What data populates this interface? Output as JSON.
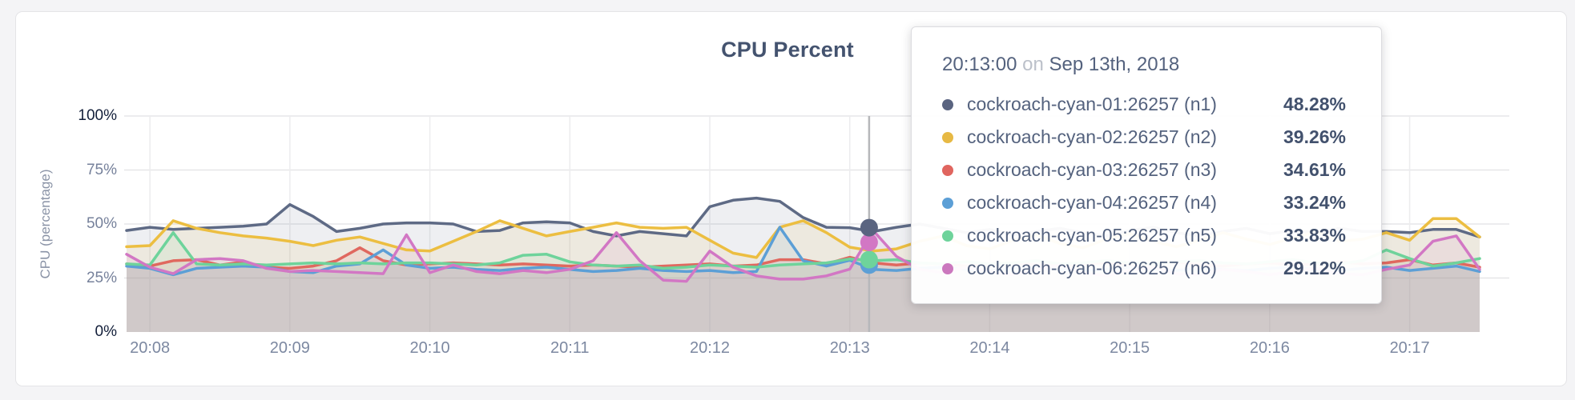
{
  "card": {
    "background": "#ffffff"
  },
  "chart_data": {
    "type": "line",
    "title": "CPU Percent",
    "ylabel": "CPU (percentage)",
    "ylim": [
      0,
      100
    ],
    "grid": true,
    "ytick_values": [
      0,
      25,
      50,
      75,
      100
    ],
    "ytick_labels": [
      "0%",
      "25%",
      "50%",
      "75%",
      "100%"
    ],
    "xtick_labels": [
      "20:08",
      "20:09",
      "20:10",
      "20:11",
      "20:12",
      "20:13",
      "20:14",
      "20:15",
      "20:16",
      "20:17"
    ],
    "x_start_time": "20:07:50",
    "x_interval_seconds": 10,
    "date": "Sep 13th, 2018",
    "series": [
      {
        "name": "cockroach-cyan-01:26257 (n1)",
        "color": "#5e6a85",
        "values": [
          47,
          48.5,
          47.5,
          48,
          48.5,
          49,
          50,
          59,
          53.5,
          46.5,
          48,
          50,
          50.5,
          50.5,
          50,
          46.5,
          47,
          50.5,
          51,
          50.5,
          46.5,
          44.5,
          46.5,
          45.5,
          44.5,
          58,
          61,
          62,
          60.5,
          53,
          48.5,
          48.28,
          46.5,
          48.5,
          50,
          48,
          46,
          47.5,
          45,
          46.5,
          48,
          46,
          44.5,
          47,
          48.5,
          46,
          44.5,
          46.5,
          48,
          45.5,
          47,
          46,
          48,
          46.5,
          46.5,
          46,
          47.5,
          47.5,
          44
        ]
      },
      {
        "name": "cockroach-cyan-02:26257 (n2)",
        "color": "#ecbe41",
        "values": [
          39.5,
          40,
          51.5,
          48,
          46,
          44.5,
          43.5,
          42,
          40,
          42.5,
          44,
          41,
          38,
          37.5,
          42,
          46.5,
          51.5,
          48,
          44.5,
          46.5,
          48.5,
          50.5,
          48.5,
          48,
          48.5,
          42.5,
          36.5,
          34.5,
          48.5,
          51.5,
          46,
          39.26,
          37.5,
          38.5,
          42,
          44.5,
          40,
          38.5,
          42.5,
          45,
          41,
          39,
          43,
          45.5,
          42,
          39.5,
          42.5,
          46,
          43,
          40.5,
          43.5,
          46.5,
          42,
          43,
          46,
          42.5,
          52.5,
          52.5,
          44
        ]
      },
      {
        "name": "cockroach-cyan-03:26257 (n3)",
        "color": "#e0685f",
        "values": [
          31.5,
          30.5,
          33,
          33.5,
          31,
          32.5,
          30,
          29.5,
          30.5,
          33,
          39,
          33,
          31,
          31.5,
          32,
          31.5,
          31,
          31.5,
          31,
          30.5,
          31,
          30.5,
          30,
          30.5,
          31,
          31.5,
          30.5,
          31,
          33.5,
          33.5,
          31.5,
          34.61,
          32,
          31,
          32,
          31.5,
          30.5,
          31.5,
          32,
          31,
          30.5,
          31.5,
          32,
          31,
          31.5,
          32.5,
          31,
          30.5,
          31.5,
          32,
          31,
          31.5,
          32.5,
          31.5,
          32,
          33.5,
          31,
          32,
          30
        ]
      },
      {
        "name": "cockroach-cyan-04:26257 (n4)",
        "color": "#5c9fd6",
        "values": [
          30.5,
          29.5,
          26.5,
          29.5,
          30,
          30.5,
          30,
          28,
          27.5,
          30.5,
          31.5,
          38,
          31,
          29.5,
          30,
          29,
          28.5,
          29.5,
          30,
          29,
          28,
          28.5,
          29.5,
          28.5,
          28,
          28.5,
          27.5,
          28,
          48.5,
          33,
          30.5,
          33.24,
          29,
          28.5,
          29.5,
          30,
          29,
          28.5,
          29.5,
          30,
          29,
          28.5,
          29,
          30,
          29,
          28.5,
          29.5,
          29,
          28.5,
          29.5,
          30,
          29,
          28.5,
          29.5,
          30,
          28.5,
          29.5,
          30.5,
          28
        ]
      },
      {
        "name": "cockroach-cyan-05:26257 (n5)",
        "color": "#6ed39b",
        "values": [
          31.5,
          31,
          46,
          31.5,
          31,
          31.5,
          31,
          31.5,
          32,
          31.5,
          32,
          31.5,
          32,
          32,
          31.5,
          31,
          32,
          35.5,
          36,
          32.5,
          31,
          30.5,
          31,
          29.5,
          30,
          31,
          30.5,
          30,
          31,
          31.5,
          32,
          33.83,
          33,
          33.5,
          32,
          31.5,
          32.5,
          31.5,
          32,
          33,
          31.5,
          32,
          33,
          32,
          31.5,
          32.5,
          33,
          32,
          31.5,
          32.5,
          33.5,
          32,
          31.5,
          33,
          38,
          34,
          30.5,
          32,
          34
        ]
      },
      {
        "name": "cockroach-cyan-06:26257 (n6)",
        "color": "#d277c4",
        "values": [
          36,
          30,
          27,
          33.5,
          34,
          33,
          29.5,
          28,
          28.5,
          28,
          27.5,
          27,
          45,
          27.5,
          31,
          28,
          27,
          28.5,
          27.5,
          29,
          33,
          46,
          33,
          24,
          23.5,
          37.5,
          30,
          26,
          24.5,
          24.5,
          26,
          29.12,
          47,
          35,
          29,
          27.5,
          30,
          28,
          26.5,
          29,
          31,
          27.5,
          26,
          28.5,
          30,
          27,
          26.5,
          29,
          28,
          26.5,
          28,
          29.5,
          27,
          26.5,
          29,
          31,
          42,
          44.5,
          29
        ]
      }
    ]
  },
  "hover": {
    "x_index": 31.83,
    "line_color": "#b6b7ba",
    "dots": [
      {
        "series_index": 3,
        "value": 31,
        "color": "#5c9fd6"
      },
      {
        "series_index": 4,
        "value": 33.5,
        "color": "#6ed39b"
      },
      {
        "series_index": 5,
        "value": 41.5,
        "color": "#d277c4"
      },
      {
        "series_index": 0,
        "value": 48.3,
        "color": "#5a6480"
      }
    ]
  },
  "tooltip": {
    "time": "20:13:00",
    "connector": "on",
    "date": "Sep 13th, 2018",
    "rows": [
      {
        "label": "cockroach-cyan-01:26257 (n1)",
        "value": "48.28%",
        "color": "#5a6480"
      },
      {
        "label": "cockroach-cyan-02:26257 (n2)",
        "value": "39.26%",
        "color": "#e7b944"
      },
      {
        "label": "cockroach-cyan-03:26257 (n3)",
        "value": "34.61%",
        "color": "#e0655f"
      },
      {
        "label": "cockroach-cyan-04:26257 (n4)",
        "value": "33.24%",
        "color": "#5c9fd6"
      },
      {
        "label": "cockroach-cyan-05:26257 (n5)",
        "value": "33.83%",
        "color": "#6ed39b"
      },
      {
        "label": "cockroach-cyan-06:26257 (n6)",
        "value": "29.12%",
        "color": "#cb78be"
      }
    ]
  }
}
